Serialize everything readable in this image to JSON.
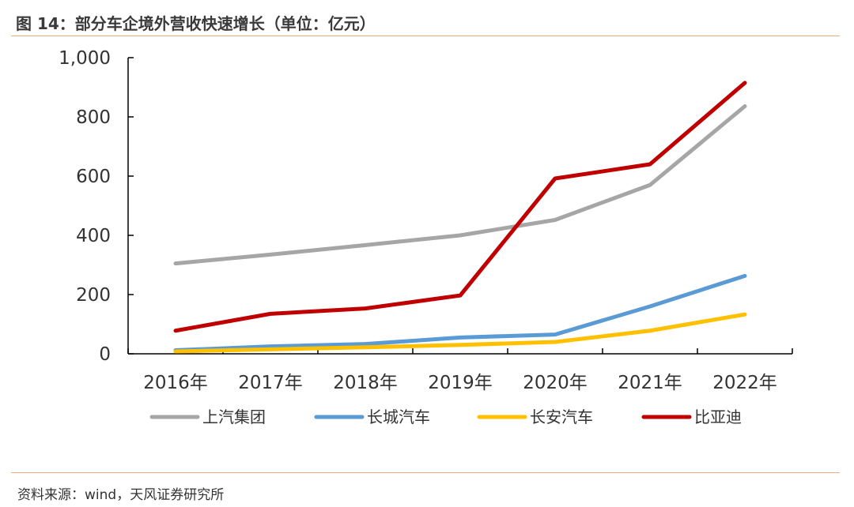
{
  "header": {
    "title": "图 14：部分车企境外营收快速增长（单位：亿元）"
  },
  "footer": {
    "source": "资料来源：wind，天风证券研究所"
  },
  "chart_data": {
    "type": "line",
    "categories": [
      "2016年",
      "2017年",
      "2018年",
      "2019年",
      "2020年",
      "2021年",
      "2022年"
    ],
    "y_ticks": [
      "0",
      "200",
      "400",
      "600",
      "800",
      "1,000"
    ],
    "ylim": [
      0,
      1000
    ],
    "legend_position": "bottom",
    "grid": false,
    "series": [
      {
        "name": "上汽集团",
        "color": "#a6a6a6",
        "values": [
          305,
          335,
          367,
          400,
          452,
          570,
          836
        ]
      },
      {
        "name": "长城汽车",
        "color": "#5b9bd5",
        "values": [
          12,
          25,
          33,
          55,
          65,
          160,
          263
        ]
      },
      {
        "name": "长安汽车",
        "color": "#ffc000",
        "values": [
          8,
          15,
          22,
          30,
          40,
          78,
          133
        ]
      },
      {
        "name": "比亚迪",
        "color": "#c00000",
        "values": [
          78,
          135,
          153,
          197,
          592,
          640,
          915
        ]
      }
    ]
  }
}
